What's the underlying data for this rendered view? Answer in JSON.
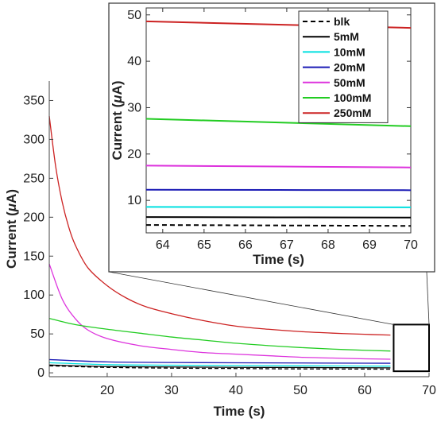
{
  "chart_data": [
    {
      "type": "line",
      "xlabel": "Time (s)",
      "ylabel_prefix": "Current (",
      "ylabel_mu": "μ",
      "ylabel_suffix": "A)",
      "xlim": [
        11,
        70
      ],
      "ylim": [
        -5,
        375
      ],
      "xticks": [
        20,
        30,
        40,
        50,
        60,
        70
      ],
      "yticks": [
        0,
        50,
        100,
        150,
        200,
        250,
        300,
        350
      ],
      "inset_box": {
        "x": [
          64.5,
          70
        ],
        "y": [
          2,
          62
        ]
      },
      "series": [
        {
          "name": "blk",
          "color": "#000000",
          "dashed": true,
          "x": [
            11,
            20,
            30,
            40,
            50,
            60,
            64
          ],
          "y": [
            9,
            7,
            6,
            5.5,
            5,
            4.8,
            4.7
          ]
        },
        {
          "name": "5mM",
          "color": "#000000",
          "x": [
            11,
            20,
            30,
            40,
            50,
            60,
            64
          ],
          "y": [
            10,
            8,
            7.5,
            7,
            6.8,
            6.5,
            6.4
          ]
        },
        {
          "name": "10mM",
          "color": "#00e0e0",
          "x": [
            11,
            20,
            30,
            40,
            50,
            60,
            64
          ],
          "y": [
            13,
            10.5,
            9.8,
            9.3,
            9,
            8.7,
            8.6
          ]
        },
        {
          "name": "20mM",
          "color": "#1a1ab5",
          "x": [
            11,
            20,
            30,
            40,
            50,
            60,
            64
          ],
          "y": [
            17,
            14,
            13.3,
            12.9,
            12.6,
            12.4,
            12.3
          ]
        },
        {
          "name": "50mM",
          "color": "#dd33dd",
          "x": [
            11,
            13,
            15,
            17,
            20,
            25,
            30,
            35,
            40,
            45,
            50,
            55,
            60,
            64
          ],
          "y": [
            140,
            95,
            70,
            55,
            44,
            35,
            30,
            26,
            24,
            22,
            20,
            19,
            18,
            17.5
          ]
        },
        {
          "name": "100mM",
          "color": "#22cc22",
          "x": [
            11,
            15,
            20,
            25,
            30,
            35,
            40,
            45,
            50,
            55,
            60,
            64
          ],
          "y": [
            70,
            62,
            56,
            51,
            46,
            42,
            38,
            35,
            32.5,
            30.5,
            29,
            28
          ]
        },
        {
          "name": "250mM",
          "color": "#cc2222",
          "x": [
            11,
            12,
            13,
            14,
            15,
            17,
            20,
            23,
            26,
            30,
            35,
            40,
            45,
            50,
            55,
            60,
            64
          ],
          "y": [
            330,
            265,
            220,
            188,
            165,
            135,
            112,
            96,
            85,
            76,
            67,
            60,
            56,
            53,
            51,
            49.5,
            48.5
          ]
        }
      ]
    },
    {
      "type": "line",
      "xlabel": "Time (s)",
      "ylabel_prefix": "Current (",
      "ylabel_mu": "μ",
      "ylabel_suffix": "A)",
      "xlim": [
        63.6,
        70
      ],
      "ylim": [
        3,
        51.5
      ],
      "xticks": [
        64,
        65,
        66,
        67,
        68,
        69,
        70
      ],
      "yticks": [
        10,
        20,
        30,
        40,
        50
      ],
      "legend": "top-right",
      "series": [
        {
          "name": "blk",
          "color": "#000000",
          "dashed": true,
          "x": [
            63.6,
            70
          ],
          "y": [
            4.7,
            4.5
          ]
        },
        {
          "name": "5mM",
          "color": "#000000",
          "x": [
            63.6,
            70
          ],
          "y": [
            6.4,
            6.3
          ]
        },
        {
          "name": "10mM",
          "color": "#00e0e0",
          "x": [
            63.6,
            70
          ],
          "y": [
            8.6,
            8.5
          ]
        },
        {
          "name": "20mM",
          "color": "#1a1ab5",
          "x": [
            63.6,
            70
          ],
          "y": [
            12.3,
            12.2
          ]
        },
        {
          "name": "50mM",
          "color": "#dd33dd",
          "x": [
            63.6,
            70
          ],
          "y": [
            17.5,
            17.1
          ]
        },
        {
          "name": "100mM",
          "color": "#22cc22",
          "x": [
            63.6,
            70
          ],
          "y": [
            27.6,
            26
          ]
        },
        {
          "name": "250mM",
          "color": "#cc2222",
          "x": [
            63.6,
            70
          ],
          "y": [
            48.6,
            47.2
          ]
        }
      ]
    }
  ]
}
